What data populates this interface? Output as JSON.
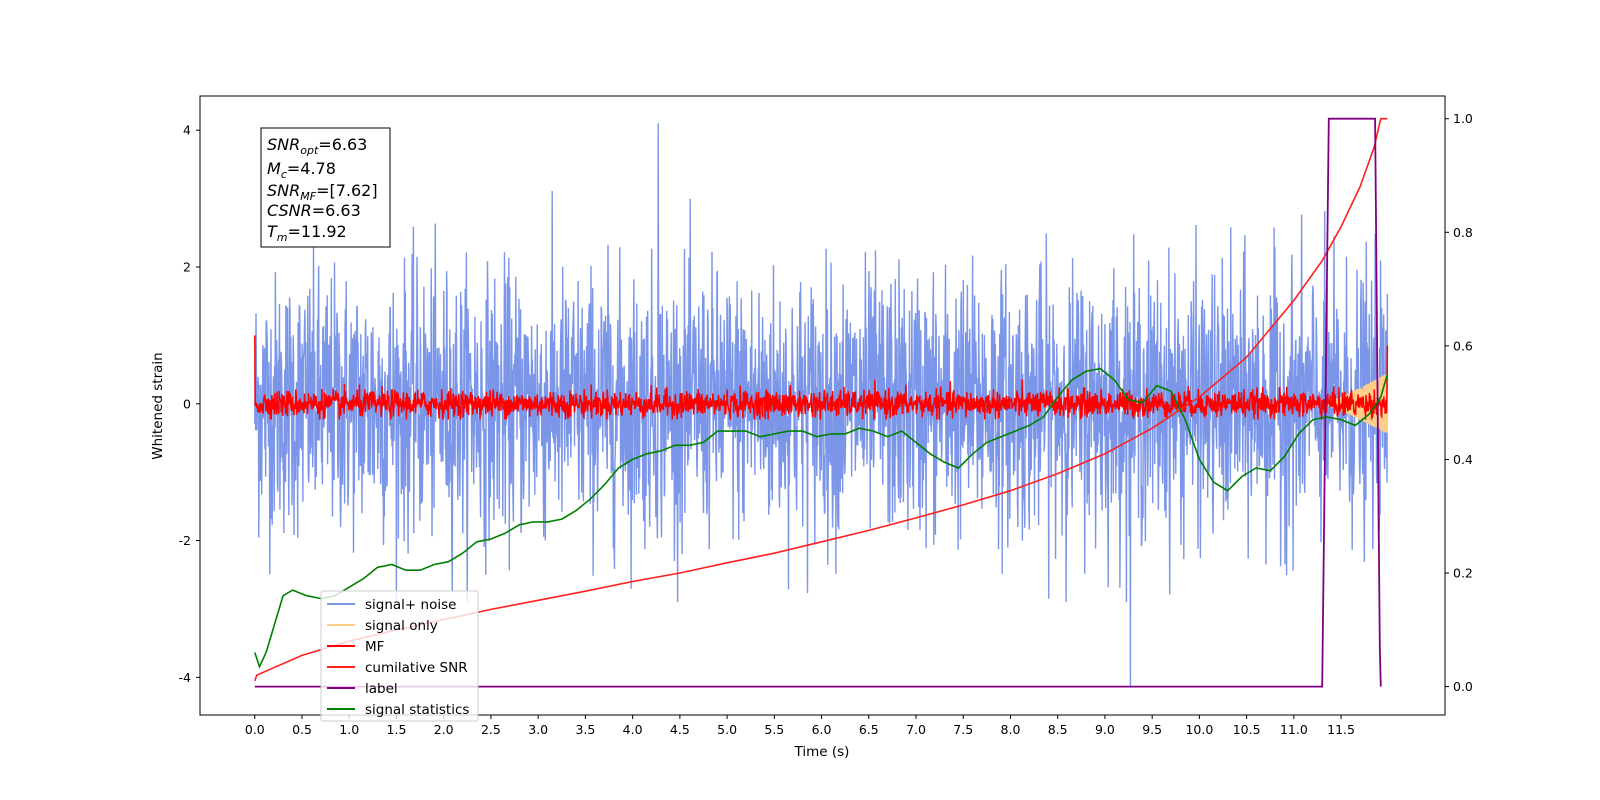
{
  "chart_data": {
    "type": "line",
    "xlabel": "Time (s)",
    "ylabel_left": "Whitened strain",
    "ylabel_right": "",
    "xlim": [
      -0.58,
      12.6
    ],
    "ylim_left": [
      -4.55,
      4.5
    ],
    "ylim_right": [
      -0.05,
      1.04
    ],
    "x_ticks": [
      "0.0",
      "0.5",
      "1.0",
      "1.5",
      "2.0",
      "2.5",
      "3.0",
      "3.5",
      "4.0",
      "4.5",
      "5.0",
      "5.5",
      "6.0",
      "6.5",
      "7.0",
      "7.5",
      "8.0",
      "8.5",
      "9.0",
      "9.5",
      "10.0",
      "10.5",
      "11.0",
      "11.5"
    ],
    "y_ticks_left": [
      "-4",
      "-2",
      "0",
      "2",
      "4"
    ],
    "y_ticks_right": [
      "0.0",
      "0.2",
      "0.4",
      "0.6",
      "0.8",
      "1.0"
    ],
    "grid": false,
    "legend": {
      "placement": "lower-left",
      "entries": [
        {
          "name": "signal+ noise",
          "color": "#7b96e8"
        },
        {
          "name": "signal only",
          "color": "#ffcf8a"
        },
        {
          "name": "MF",
          "color": "#ff0000"
        },
        {
          "name": "cumilative SNR",
          "color": "#ff2020"
        },
        {
          "name": "label",
          "color": "#800080"
        },
        {
          "name": "signal statistics",
          "color": "#008000"
        }
      ]
    },
    "annotation_box": {
      "placement": "top-left",
      "lines": [
        {
          "var": "SNR",
          "sub": "opt",
          "value": "6.63"
        },
        {
          "var": "M",
          "sub": "c",
          "value": "4.78"
        },
        {
          "var": "SNR",
          "sub": "MF",
          "value": "[7.62]"
        },
        {
          "var": "CSNR",
          "sub": "",
          "value": "6.63"
        },
        {
          "var": "T",
          "sub": "m",
          "value": "11.92"
        }
      ]
    },
    "series": [
      {
        "name": "signal+ noise",
        "axis": "left",
        "style": "noise",
        "color": "#7b96e8",
        "x_range": [
          0.0,
          11.99
        ],
        "mean": 0.0,
        "std": 1.0,
        "typical_min": -2.6,
        "typical_max": 2.8,
        "peak_max": 4.1,
        "peak_max_x": 4.27,
        "peak_min": -4.15,
        "peak_min_x": 9.27
      },
      {
        "name": "signal only",
        "axis": "left",
        "style": "chirp",
        "color": "#ffcf8a",
        "x_range": [
          11.3,
          11.99
        ],
        "amplitude_end": 0.45
      },
      {
        "name": "MF",
        "axis": "left",
        "style": "noise",
        "color": "#ff0000",
        "x_range": [
          0.0,
          11.99
        ],
        "mean": 0.0,
        "typical_min": -0.18,
        "typical_max": 0.3,
        "start_value": 1.0,
        "end_value": 0.85
      },
      {
        "name": "cumilative SNR",
        "axis": "right",
        "x": [
          0.0,
          0.02,
          0.5,
          1.0,
          1.5,
          2.0,
          2.5,
          3.0,
          3.5,
          4.0,
          4.5,
          5.0,
          5.5,
          6.0,
          6.5,
          7.0,
          7.5,
          8.0,
          8.5,
          9.0,
          9.5,
          10.0,
          10.5,
          11.0,
          11.3,
          11.5,
          11.7,
          11.85,
          11.92,
          11.99
        ],
        "y": [
          0.01,
          0.02,
          0.055,
          0.08,
          0.1,
          0.118,
          0.136,
          0.152,
          0.168,
          0.185,
          0.2,
          0.218,
          0.235,
          0.255,
          0.275,
          0.297,
          0.32,
          0.345,
          0.375,
          0.41,
          0.455,
          0.51,
          0.58,
          0.68,
          0.75,
          0.81,
          0.88,
          0.95,
          1.0,
          1.0
        ]
      },
      {
        "name": "label",
        "axis": "right",
        "x": [
          0.0,
          11.3,
          11.37,
          11.86,
          11.91,
          11.92
        ],
        "y": [
          0.0,
          0.0,
          1.0,
          1.0,
          0.07,
          0.0
        ]
      },
      {
        "name": "signal statistics",
        "axis": "right",
        "x": [
          0.0,
          0.05,
          0.12,
          0.3,
          0.4,
          0.55,
          0.7,
          0.85,
          1.0,
          1.15,
          1.3,
          1.45,
          1.6,
          1.75,
          1.9,
          2.05,
          2.2,
          2.35,
          2.5,
          2.65,
          2.8,
          2.95,
          3.1,
          3.25,
          3.4,
          3.55,
          3.7,
          3.85,
          4.0,
          4.15,
          4.3,
          4.45,
          4.6,
          4.75,
          4.9,
          5.05,
          5.2,
          5.35,
          5.5,
          5.65,
          5.8,
          5.95,
          6.1,
          6.25,
          6.4,
          6.55,
          6.7,
          6.85,
          7.0,
          7.15,
          7.3,
          7.45,
          7.6,
          7.75,
          7.9,
          8.05,
          8.2,
          8.35,
          8.5,
          8.65,
          8.8,
          8.95,
          9.1,
          9.25,
          9.4,
          9.55,
          9.7,
          9.85,
          10.0,
          10.15,
          10.3,
          10.45,
          10.6,
          10.75,
          10.9,
          11.05,
          11.2,
          11.35,
          11.5,
          11.65,
          11.8,
          11.92,
          11.99
        ],
        "y": [
          0.06,
          0.035,
          0.06,
          0.16,
          0.17,
          0.16,
          0.155,
          0.16,
          0.175,
          0.19,
          0.21,
          0.215,
          0.205,
          0.205,
          0.215,
          0.22,
          0.235,
          0.255,
          0.26,
          0.27,
          0.285,
          0.29,
          0.29,
          0.295,
          0.31,
          0.33,
          0.355,
          0.385,
          0.4,
          0.41,
          0.415,
          0.425,
          0.425,
          0.43,
          0.45,
          0.45,
          0.45,
          0.44,
          0.445,
          0.45,
          0.45,
          0.44,
          0.445,
          0.445,
          0.455,
          0.45,
          0.44,
          0.45,
          0.43,
          0.41,
          0.395,
          0.385,
          0.41,
          0.43,
          0.44,
          0.45,
          0.46,
          0.475,
          0.51,
          0.54,
          0.555,
          0.56,
          0.54,
          0.505,
          0.5,
          0.53,
          0.52,
          0.47,
          0.4,
          0.36,
          0.345,
          0.37,
          0.385,
          0.38,
          0.405,
          0.445,
          0.47,
          0.475,
          0.47,
          0.46,
          0.48,
          0.51,
          0.55
        ]
      }
    ]
  }
}
